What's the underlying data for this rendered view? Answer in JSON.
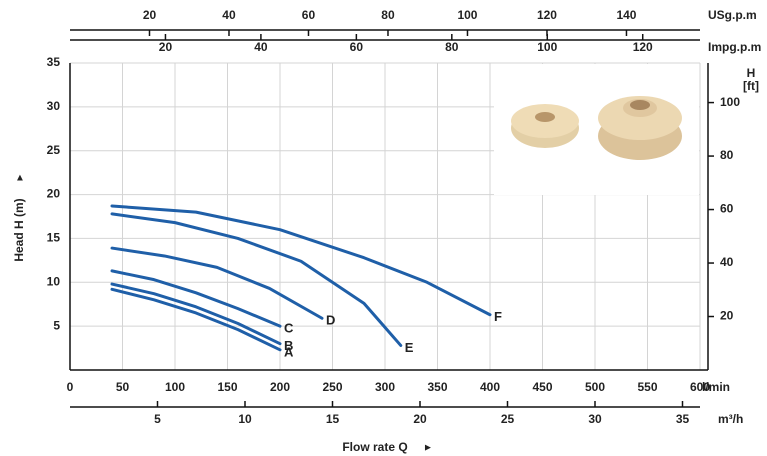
{
  "chart_data": {
    "type": "line",
    "x_label": "Flow rate Q",
    "y_label": "Head H (m)",
    "x_unit": "l/min",
    "y2_label": [
      "H",
      "[ft]"
    ],
    "xlim": [
      0,
      600
    ],
    "xticks": [
      0,
      50,
      100,
      150,
      200,
      250,
      300,
      350,
      400,
      450,
      500,
      550,
      600
    ],
    "ylim": [
      0,
      35
    ],
    "yticks": [
      5,
      10,
      15,
      20,
      25,
      30,
      35
    ],
    "y2lim": [
      0,
      114.8
    ],
    "y2ticks": [
      20,
      40,
      60,
      80,
      100
    ],
    "secondary_x_axes": [
      {
        "label": "m³/h",
        "position": "bottom",
        "lim": [
          0,
          36
        ],
        "ticks": [
          5,
          10,
          15,
          20,
          25,
          30,
          35
        ]
      },
      {
        "label": "USg.p.m",
        "position": "top",
        "lim": [
          0,
          158.5
        ],
        "ticks": [
          20,
          40,
          60,
          80,
          100,
          120,
          140
        ]
      },
      {
        "label": "Impg.p.m",
        "position": "top",
        "lim": [
          0,
          132
        ],
        "ticks": [
          20,
          40,
          60,
          80,
          100,
          120
        ]
      }
    ],
    "grid": true,
    "color": "#1f5fa8",
    "series": [
      {
        "name": "A",
        "x": [
          40,
          80,
          120,
          160,
          200
        ],
        "values": [
          9.2,
          8.0,
          6.5,
          4.6,
          2.3
        ]
      },
      {
        "name": "B",
        "x": [
          40,
          80,
          120,
          160,
          200
        ],
        "values": [
          9.8,
          8.7,
          7.2,
          5.3,
          3.0
        ]
      },
      {
        "name": "C",
        "x": [
          40,
          80,
          120,
          160,
          200
        ],
        "values": [
          11.3,
          10.3,
          8.8,
          7.0,
          5.0
        ]
      },
      {
        "name": "D",
        "x": [
          40,
          90,
          140,
          190,
          240
        ],
        "values": [
          13.9,
          13.0,
          11.7,
          9.3,
          5.9
        ]
      },
      {
        "name": "E",
        "x": [
          40,
          100,
          160,
          220,
          280,
          315
        ],
        "values": [
          17.8,
          16.8,
          15.0,
          12.4,
          7.6,
          2.8
        ]
      },
      {
        "name": "F",
        "x": [
          40,
          120,
          200,
          280,
          340,
          400
        ],
        "values": [
          18.7,
          18.0,
          16.0,
          12.8,
          10.0,
          6.3
        ]
      }
    ]
  }
}
